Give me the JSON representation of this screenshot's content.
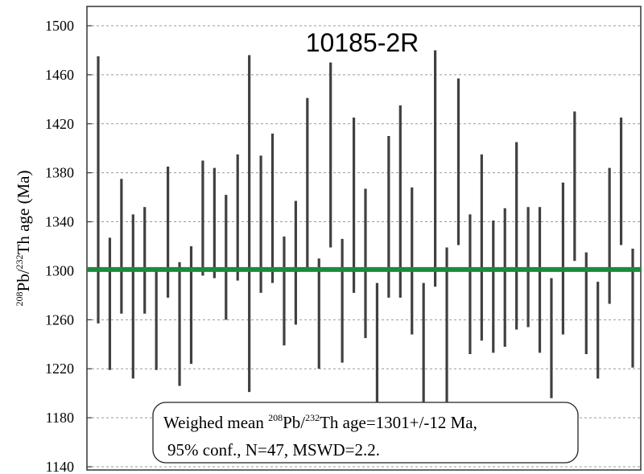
{
  "chart_data": {
    "type": "errorbar",
    "title": "10185-2R",
    "y_label": [
      "208",
      "Pb/",
      "232",
      "Th age (Ma)"
    ],
    "annotation": [
      [
        "Weighed mean ",
        "208",
        "Pb/",
        "232",
        "Th age=1301+/-12 Ma,"
      ],
      [
        "95% conf., N=47, MSWD=2.2."
      ]
    ],
    "values": [
      1366,
      1273,
      1320,
      1279,
      1308.5,
      1260,
      1331.5,
      1256.5,
      1272,
      1343,
      1339,
      1311,
      1343.5,
      1338.5,
      1338,
      1351,
      1283.5,
      1306.5,
      1370.5,
      1265,
      1394.5,
      1275.5,
      1353.5,
      1306,
      1241.5,
      1344,
      1356.5,
      1308,
      1241.5,
      1383.5,
      1256,
      1389,
      1289,
      1319,
      1287,
      1294.5,
      1328.5,
      1303,
      1292.5,
      1245,
      1310,
      1369,
      1273.5,
      1251.5,
      1328.5,
      1373,
      1269.5
    ],
    "errors": [
      109,
      54,
      55,
      67,
      43.5,
      41,
      53.5,
      50.5,
      48,
      47,
      45,
      51,
      51.5,
      137.5,
      56,
      61,
      44.5,
      50.5,
      70.5,
      45,
      75.5,
      50.5,
      71.5,
      61,
      48.5,
      66,
      78.5,
      60,
      48.5,
      96.5,
      63,
      68,
      57,
      76,
      54,
      56.5,
      76.5,
      49,
      59.5,
      49,
      62,
      61,
      41.5,
      39.5,
      55.5,
      52,
      48.5
    ],
    "color": "#404040",
    "mean": 1301,
    "mean_color": "#1a8a3c",
    "ylim": [
      1140,
      1500
    ],
    "yticks": [
      1140,
      1180,
      1220,
      1260,
      1300,
      1340,
      1380,
      1420,
      1460,
      1500
    ],
    "grid": true
  }
}
